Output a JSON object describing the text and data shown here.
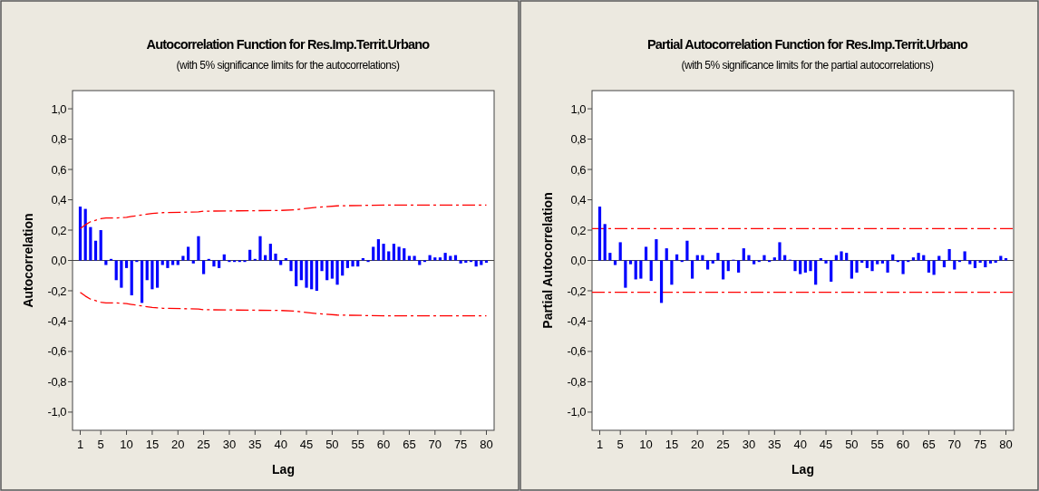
{
  "chart_data": [
    {
      "type": "bar",
      "title": "Autocorrelation Function for Res.Imp.Territ.Urbano",
      "subtitle": "(with 5% significance limits for the autocorrelations)",
      "xlabel": "Lag",
      "ylabel": "Autocorrelation",
      "x": [
        1,
        2,
        3,
        4,
        5,
        6,
        7,
        8,
        9,
        10,
        11,
        12,
        13,
        14,
        15,
        16,
        17,
        18,
        19,
        20,
        21,
        22,
        23,
        24,
        25,
        26,
        27,
        28,
        29,
        30,
        31,
        32,
        33,
        34,
        35,
        36,
        37,
        38,
        39,
        40,
        41,
        42,
        43,
        44,
        45,
        46,
        47,
        48,
        49,
        50,
        51,
        52,
        53,
        54,
        55,
        56,
        57,
        58,
        59,
        60,
        61,
        62,
        63,
        64,
        65,
        66,
        67,
        68,
        69,
        70,
        71,
        72,
        73,
        74,
        75,
        76,
        77,
        78,
        79,
        80
      ],
      "xlim": [
        -0.5,
        81.5
      ],
      "xticks": [
        1,
        5,
        10,
        15,
        20,
        25,
        30,
        35,
        40,
        45,
        50,
        55,
        60,
        65,
        70,
        75,
        80
      ],
      "ylim": [
        -1.12,
        1.12
      ],
      "yticks": [
        {
          "value": -1,
          "label": "-1,0"
        },
        {
          "value": -0.8,
          "label": "-0,8"
        },
        {
          "value": -0.6,
          "label": "-0,6"
        },
        {
          "value": -0.4,
          "label": "-0,4"
        },
        {
          "value": -0.2,
          "label": "-0,2"
        },
        {
          "value": 0,
          "label": "0,0"
        },
        {
          "value": 0.2,
          "label": "0,2"
        },
        {
          "value": 0.4,
          "label": "0,4"
        },
        {
          "value": 0.6,
          "label": "0,6"
        },
        {
          "value": 0.8,
          "label": "0,8"
        },
        {
          "value": 1,
          "label": "1,0"
        }
      ],
      "series": [
        {
          "color": "#0000ff",
          "values": [
            0.355,
            0.34,
            0.22,
            0.13,
            0.2,
            -0.03,
            0.01,
            -0.13,
            -0.18,
            -0.05,
            -0.23,
            -0.01,
            -0.28,
            -0.13,
            -0.19,
            -0.18,
            -0.03,
            -0.05,
            -0.03,
            -0.03,
            0.03,
            0.09,
            -0.02,
            0.16,
            -0.09,
            0.01,
            -0.04,
            -0.05,
            0.04,
            -0.01,
            -0.01,
            -0.01,
            -0.01,
            0.07,
            0.01,
            0.16,
            0.035,
            0.11,
            0.045,
            -0.03,
            0.015,
            -0.07,
            -0.17,
            -0.13,
            -0.18,
            -0.19,
            -0.2,
            -0.07,
            -0.13,
            -0.12,
            -0.16,
            -0.1,
            -0.05,
            -0.04,
            -0.04,
            0.015,
            -0.01,
            0.09,
            0.14,
            0.11,
            0.06,
            0.11,
            0.09,
            0.08,
            0.03,
            0.03,
            -0.03,
            -0.01,
            0.035,
            0.02,
            0.02,
            0.05,
            0.03,
            0.035,
            -0.02,
            -0.015,
            -0.01,
            -0.04,
            -0.03,
            -0.015
          ]
        },
        {
          "type": "line",
          "color": "#ff0000",
          "line_style": "dashed",
          "x": [
            1,
            2,
            3,
            4,
            5,
            6,
            8,
            10,
            11,
            12,
            13,
            14,
            15,
            17,
            24,
            25,
            40,
            43,
            47,
            51,
            60,
            80
          ],
          "values": [
            0.21,
            0.235,
            0.255,
            0.265,
            0.275,
            0.28,
            0.28,
            0.285,
            0.29,
            0.295,
            0.3,
            0.305,
            0.31,
            0.315,
            0.32,
            0.325,
            0.33,
            0.335,
            0.35,
            0.36,
            0.365,
            0.365
          ]
        },
        {
          "type": "line",
          "color": "#ff0000",
          "line_style": "dashed",
          "x": [
            1,
            2,
            3,
            4,
            5,
            6,
            8,
            10,
            11,
            12,
            13,
            14,
            15,
            17,
            24,
            25,
            40,
            43,
            47,
            51,
            60,
            80
          ],
          "values": [
            -0.21,
            -0.235,
            -0.255,
            -0.265,
            -0.275,
            -0.28,
            -0.28,
            -0.285,
            -0.29,
            -0.295,
            -0.3,
            -0.305,
            -0.31,
            -0.315,
            -0.32,
            -0.325,
            -0.33,
            -0.335,
            -0.35,
            -0.36,
            -0.365,
            -0.365
          ]
        }
      ]
    },
    {
      "type": "bar",
      "title": "Partial Autocorrelation Function for Res.Imp.Territ.Urbano",
      "subtitle": "(with 5% significance limits for the partial autocorrelations)",
      "xlabel": "Lag",
      "ylabel": "Partial Autocorrelation",
      "x": [
        1,
        2,
        3,
        4,
        5,
        6,
        7,
        8,
        9,
        10,
        11,
        12,
        13,
        14,
        15,
        16,
        17,
        18,
        19,
        20,
        21,
        22,
        23,
        24,
        25,
        26,
        27,
        28,
        29,
        30,
        31,
        32,
        33,
        34,
        35,
        36,
        37,
        38,
        39,
        40,
        41,
        42,
        43,
        44,
        45,
        46,
        47,
        48,
        49,
        50,
        51,
        52,
        53,
        54,
        55,
        56,
        57,
        58,
        59,
        60,
        61,
        62,
        63,
        64,
        65,
        66,
        67,
        68,
        69,
        70,
        71,
        72,
        73,
        74,
        75,
        76,
        77,
        78,
        79,
        80
      ],
      "xlim": [
        -0.5,
        81.5
      ],
      "xticks": [
        1,
        5,
        10,
        15,
        20,
        25,
        30,
        35,
        40,
        45,
        50,
        55,
        60,
        65,
        70,
        75,
        80
      ],
      "ylim": [
        -1.12,
        1.12
      ],
      "yticks": [
        {
          "value": -1,
          "label": "-1,0"
        },
        {
          "value": -0.8,
          "label": "-0,8"
        },
        {
          "value": -0.6,
          "label": "-0,6"
        },
        {
          "value": -0.4,
          "label": "-0,4"
        },
        {
          "value": -0.2,
          "label": "-0,2"
        },
        {
          "value": 0,
          "label": "0,0"
        },
        {
          "value": 0.2,
          "label": "0,2"
        },
        {
          "value": 0.4,
          "label": "0,4"
        },
        {
          "value": 0.6,
          "label": "0,6"
        },
        {
          "value": 0.8,
          "label": "0,8"
        },
        {
          "value": 1,
          "label": "1,0"
        }
      ],
      "series": [
        {
          "color": "#0000ff",
          "values": [
            0.355,
            0.24,
            0.05,
            -0.03,
            0.12,
            -0.18,
            -0.025,
            -0.125,
            -0.12,
            0.09,
            -0.135,
            0.14,
            -0.28,
            0.08,
            -0.16,
            0.04,
            -0.01,
            0.13,
            -0.12,
            0.035,
            0.035,
            -0.06,
            -0.02,
            0.05,
            -0.125,
            -0.07,
            0.005,
            -0.08,
            0.08,
            0.035,
            -0.025,
            -0.01,
            0.035,
            -0.01,
            0.02,
            0.12,
            0.035,
            0.005,
            -0.07,
            -0.09,
            -0.08,
            -0.07,
            -0.16,
            0.015,
            -0.02,
            -0.14,
            0.035,
            0.06,
            0.05,
            -0.12,
            -0.08,
            -0.015,
            -0.05,
            -0.07,
            -0.025,
            -0.02,
            -0.08,
            0.04,
            -0.01,
            -0.09,
            -0.01,
            0.02,
            0.05,
            0.035,
            -0.08,
            -0.095,
            0.03,
            -0.045,
            0.075,
            -0.06,
            -0.01,
            0.06,
            -0.025,
            -0.05,
            -0.015,
            -0.045,
            -0.02,
            -0.015,
            0.03,
            0.015
          ]
        }
      ],
      "ref_lines": [
        {
          "axis": "y",
          "value": 0.21,
          "color": "#ff0000",
          "line_style": "dashed"
        },
        {
          "axis": "y",
          "value": -0.21,
          "color": "#ff0000",
          "line_style": "dashed"
        }
      ]
    }
  ]
}
